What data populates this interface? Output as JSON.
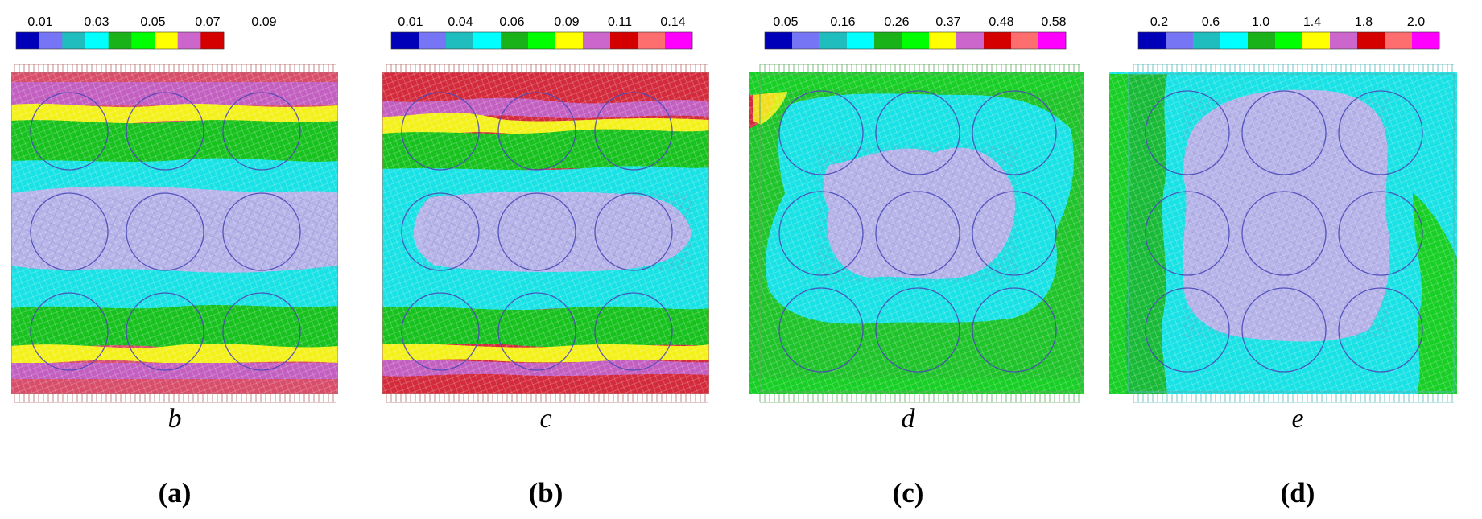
{
  "panels": [
    {
      "id": "a",
      "scale_ticks": [
        "0.01",
        "0.03",
        "0.05",
        "0.07",
        "0.09"
      ],
      "swatches": [
        "#0000b8",
        "#7575f5",
        "#1fbdbd",
        "#00ffff",
        "#19b319",
        "#00ff00",
        "#ffff00",
        "#cc66cc",
        "#d40000"
      ],
      "subtitle": "b",
      "caption": "(a)",
      "pattern": "horizontal-bands"
    },
    {
      "id": "b",
      "scale_ticks": [
        "0.01",
        "0.04",
        "0.06",
        "0.09",
        "0.11",
        "0.14"
      ],
      "swatches": [
        "#0000b8",
        "#7575f5",
        "#1fbdbd",
        "#00ffff",
        "#19b319",
        "#00ff00",
        "#ffff00",
        "#cc66cc",
        "#d40000",
        "#ff6e6e",
        "#ff00ff"
      ],
      "subtitle": "c",
      "caption": "(b)",
      "pattern": "horizontal-bands-strong"
    },
    {
      "id": "c",
      "scale_ticks": [
        "0.05",
        "0.16",
        "0.26",
        "0.37",
        "0.48",
        "0.58"
      ],
      "swatches": [
        "#0000b8",
        "#7575f5",
        "#1fbdbd",
        "#00ffff",
        "#19b319",
        "#00ff00",
        "#ffff00",
        "#cc66cc",
        "#d40000",
        "#ff6e6e",
        "#ff00ff"
      ],
      "subtitle": "d",
      "caption": "(c)",
      "pattern": "ring-grid"
    },
    {
      "id": "d",
      "scale_ticks": [
        "0.2",
        "0.6",
        "1.0",
        "1.4",
        "1.8",
        "2.0"
      ],
      "swatches": [
        "#0000b8",
        "#7575f5",
        "#1fbdbd",
        "#00ffff",
        "#19b319",
        "#00ff00",
        "#ffff00",
        "#cc66cc",
        "#d40000",
        "#ff6e6e",
        "#ff00ff"
      ],
      "subtitle": "e",
      "caption": "(d)",
      "pattern": "vertical-bands"
    }
  ],
  "colors": {
    "mesh_core": "#c9c7e6",
    "ring_stroke": "#4b49b8",
    "boundary": "#b56f6f",
    "boundary_green": "#62a862",
    "boundary_teal": "#55b7b7"
  }
}
